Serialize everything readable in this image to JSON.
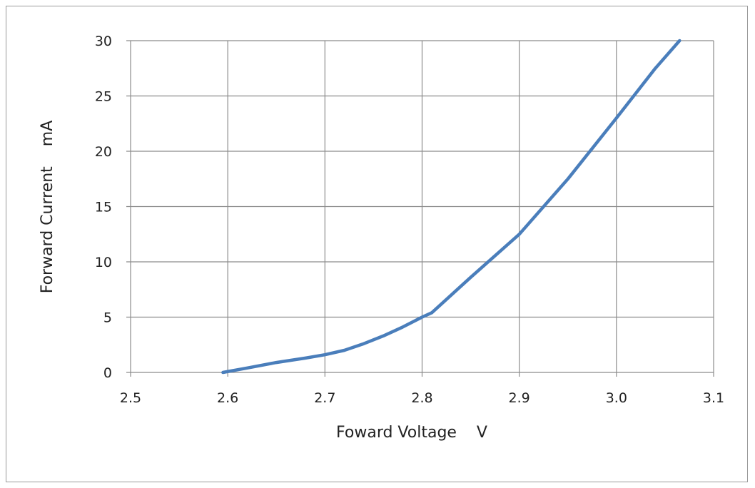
{
  "chart_data": {
    "type": "line",
    "title": "",
    "xlabel": "Foward Voltage    V",
    "ylabel": "Forward Current    mA",
    "xlim": [
      2.5,
      3.1
    ],
    "ylim": [
      0,
      30
    ],
    "x_ticks": [
      "2.5",
      "2.6",
      "2.7",
      "2.8",
      "2.9",
      "3.0",
      "3.1"
    ],
    "y_ticks": [
      "0",
      "5",
      "10",
      "15",
      "20",
      "25",
      "30"
    ],
    "grid": true,
    "legend": "none",
    "series": [
      {
        "color": "#4a7ebb",
        "x": [
          2.595,
          2.62,
          2.65,
          2.68,
          2.7,
          2.72,
          2.74,
          2.76,
          2.78,
          2.8,
          2.81,
          2.85,
          2.9,
          2.95,
          3.0,
          3.04,
          3.065
        ],
        "y": [
          0,
          0.4,
          0.9,
          1.3,
          1.6,
          2.0,
          2.6,
          3.3,
          4.1,
          5.0,
          5.4,
          8.6,
          12.5,
          17.5,
          23.0,
          27.5,
          30.0
        ]
      }
    ]
  }
}
